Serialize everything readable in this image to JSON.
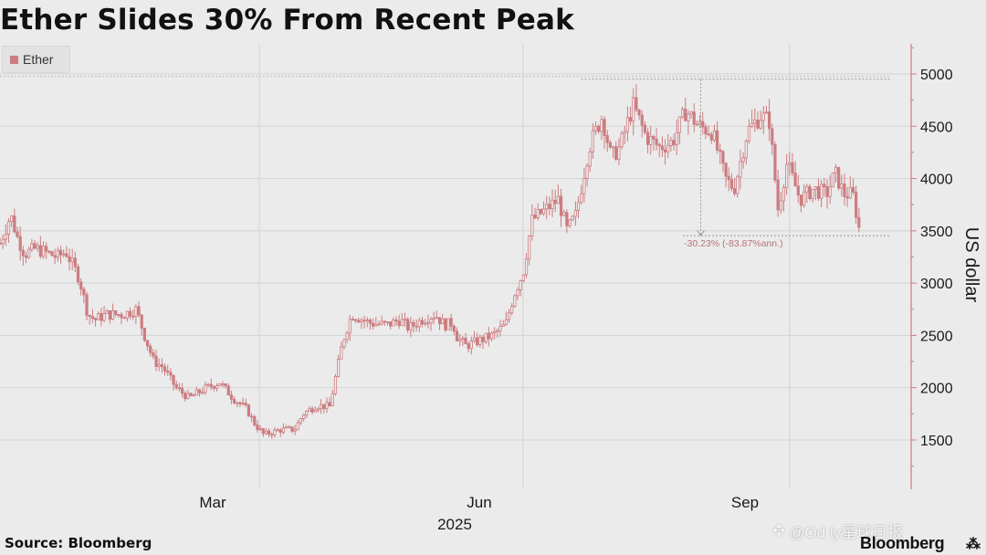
{
  "chart_data": {
    "type": "candlestick",
    "title": "Ether Slides 30% From Recent Peak",
    "legend": [
      "Ether"
    ],
    "ylabel": "US dollar",
    "xlabel": "2025",
    "ylim": [
      1150,
      5300
    ],
    "y_ticks": [
      1500,
      2000,
      2500,
      3000,
      3500,
      4000,
      4500,
      5000
    ],
    "x_ticks": [
      "Mar",
      "Jun",
      "Sep"
    ],
    "x_range_months": [
      0,
      9.6
    ],
    "x_tick_month_index": [
      1,
      4,
      7
    ],
    "grid": true,
    "annotation": {
      "text": "-30.23% (-83.87%ann.)",
      "peak": 4950,
      "trough": 3453,
      "peak_month": 6.61,
      "trough_month": 7.97
    },
    "series": [
      {
        "name": "Ether",
        "color": "#cc7c80",
        "anchors": [
          [
            0.0,
            3380
          ],
          [
            0.12,
            3650
          ],
          [
            0.2,
            3430
          ],
          [
            0.28,
            3280
          ],
          [
            0.4,
            3330
          ],
          [
            0.5,
            3300
          ],
          [
            0.65,
            3250
          ],
          [
            0.75,
            3300
          ],
          [
            0.9,
            3050
          ],
          [
            1.0,
            2700
          ],
          [
            1.08,
            2650
          ],
          [
            1.2,
            2700
          ],
          [
            1.4,
            2700
          ],
          [
            1.55,
            2750
          ],
          [
            1.65,
            2480
          ],
          [
            1.75,
            2250
          ],
          [
            1.85,
            2200
          ],
          [
            2.0,
            2000
          ],
          [
            2.15,
            1900
          ],
          [
            2.35,
            2000
          ],
          [
            2.5,
            2050
          ],
          [
            2.65,
            1900
          ],
          [
            2.8,
            1800
          ],
          [
            2.9,
            1650
          ],
          [
            3.0,
            1550
          ],
          [
            3.2,
            1600
          ],
          [
            3.35,
            1600
          ],
          [
            3.45,
            1750
          ],
          [
            3.6,
            1830
          ],
          [
            3.75,
            1820
          ],
          [
            3.9,
            2450
          ],
          [
            4.0,
            2700
          ],
          [
            4.2,
            2620
          ],
          [
            4.4,
            2600
          ],
          [
            4.55,
            2650
          ],
          [
            4.65,
            2570
          ],
          [
            4.8,
            2650
          ],
          [
            4.95,
            2700
          ],
          [
            5.05,
            2600
          ],
          [
            5.15,
            2620
          ],
          [
            5.2,
            2480
          ],
          [
            5.3,
            2400
          ],
          [
            5.45,
            2450
          ],
          [
            5.6,
            2500
          ],
          [
            5.75,
            2600
          ],
          [
            5.85,
            2900
          ],
          [
            5.95,
            3100
          ],
          [
            6.05,
            3600
          ],
          [
            6.2,
            3700
          ],
          [
            6.35,
            3800
          ],
          [
            6.45,
            3500
          ],
          [
            6.55,
            3650
          ],
          [
            6.7,
            4300
          ],
          [
            6.85,
            4600
          ],
          [
            6.95,
            4200
          ],
          [
            7.05,
            4300
          ],
          [
            7.2,
            4700
          ],
          [
            7.35,
            4400
          ],
          [
            7.5,
            4300
          ],
          [
            7.65,
            4350
          ],
          [
            7.8,
            4650
          ],
          [
            7.95,
            4500
          ],
          [
            8.1,
            4450
          ],
          [
            8.25,
            4000
          ],
          [
            8.35,
            3900
          ],
          [
            8.5,
            4450
          ],
          [
            8.65,
            4600
          ],
          [
            8.75,
            4550
          ],
          [
            8.85,
            3700
          ],
          [
            8.95,
            4150
          ],
          [
            9.1,
            3800
          ],
          [
            9.25,
            3900
          ],
          [
            9.4,
            3850
          ],
          [
            9.5,
            4050
          ],
          [
            9.6,
            3850
          ],
          [
            9.7,
            3850
          ],
          [
            9.78,
            3480
          ]
        ]
      }
    ]
  },
  "source_text": "Source: Bloomberg",
  "brand_text": "Bloomberg",
  "watermark_text": "@Od  ly星球日报"
}
